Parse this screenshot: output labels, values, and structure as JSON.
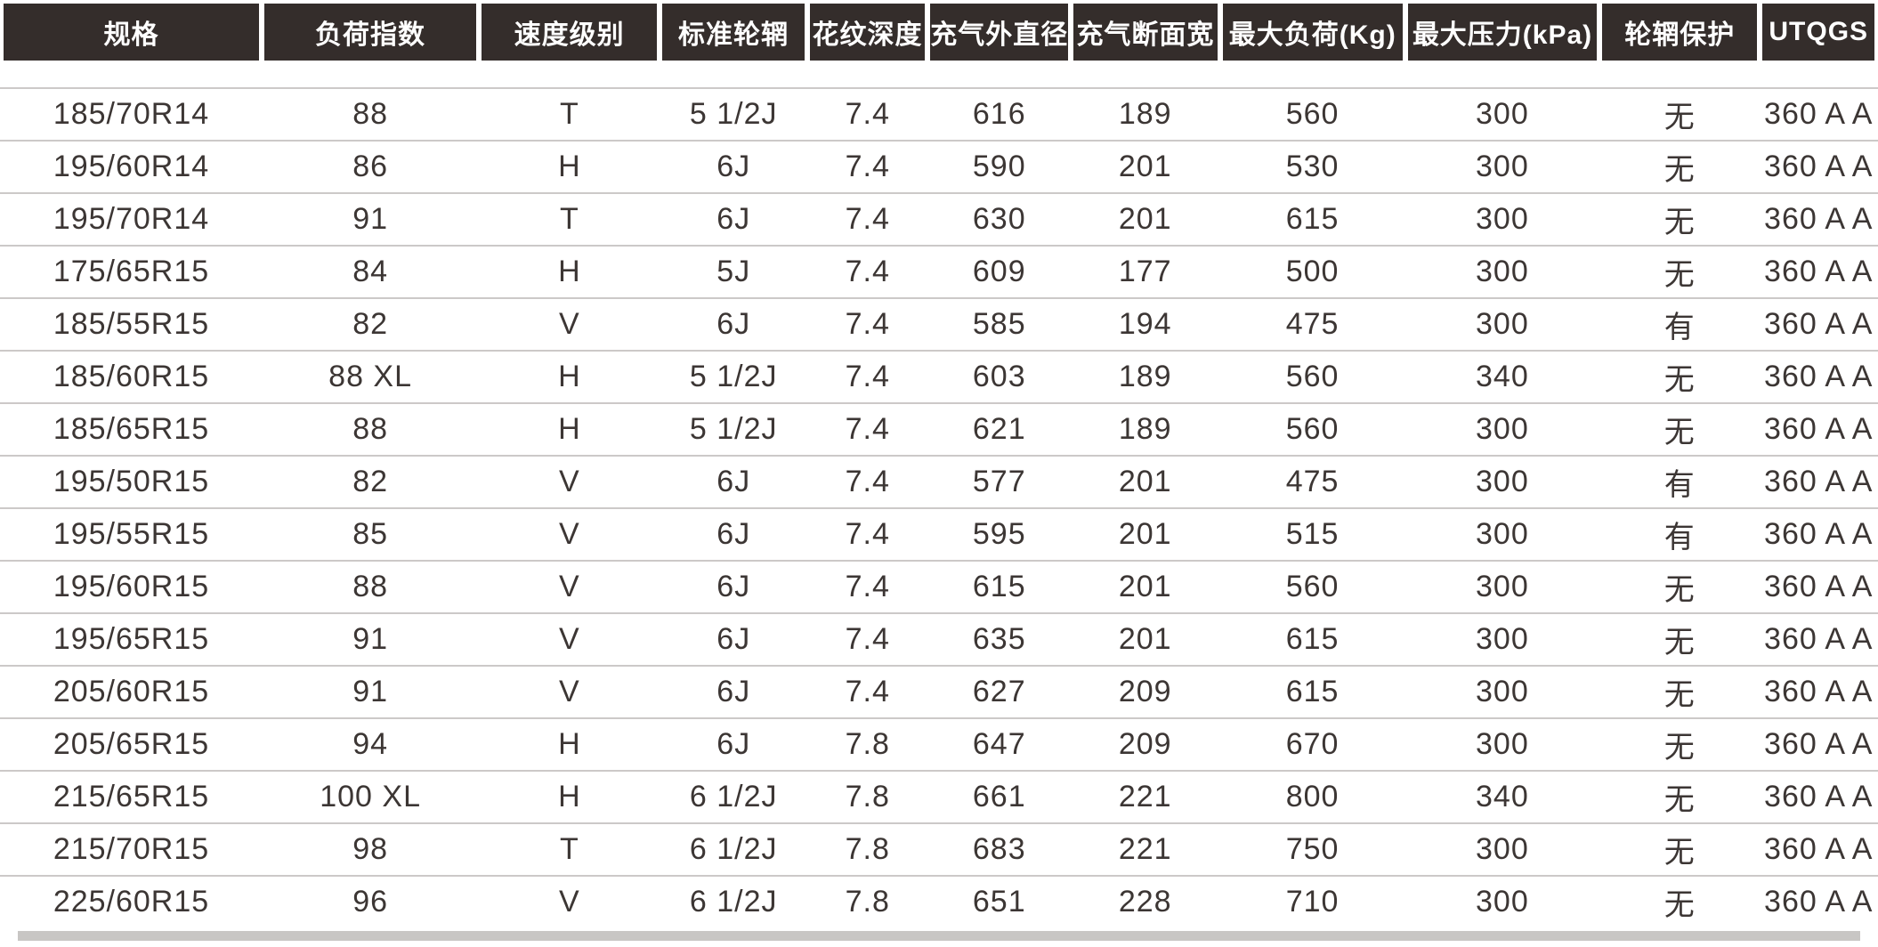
{
  "colors": {
    "header_background": "#342d2b",
    "header_text": "#ffffff",
    "cell_text": "#3c3634",
    "divider_line": "#ccc9c8",
    "bottom_bar": "#c8c6c4",
    "page_background": "#ffffff"
  },
  "table": {
    "columns": [
      "规格",
      "负荷指数",
      "速度级别",
      "标准轮辋",
      "花纹深度",
      "充气外直径",
      "充气断面宽",
      "最大负荷(Kg)",
      "最大压力(kPa)",
      "轮辋保护",
      "UTQGS"
    ],
    "rows": [
      [
        "185/70R14",
        "88",
        "T",
        "5 1/2J",
        "7.4",
        "616",
        "189",
        "560",
        "300",
        "无",
        "360 A A"
      ],
      [
        "195/60R14",
        "86",
        "H",
        "6J",
        "7.4",
        "590",
        "201",
        "530",
        "300",
        "无",
        "360 A A"
      ],
      [
        "195/70R14",
        "91",
        "T",
        "6J",
        "7.4",
        "630",
        "201",
        "615",
        "300",
        "无",
        "360 A A"
      ],
      [
        "175/65R15",
        "84",
        "H",
        "5J",
        "7.4",
        "609",
        "177",
        "500",
        "300",
        "无",
        "360 A A"
      ],
      [
        "185/55R15",
        "82",
        "V",
        "6J",
        "7.4",
        "585",
        "194",
        "475",
        "300",
        "有",
        "360 A A"
      ],
      [
        "185/60R15",
        "88 XL",
        "H",
        "5 1/2J",
        "7.4",
        "603",
        "189",
        "560",
        "340",
        "无",
        "360 A A"
      ],
      [
        "185/65R15",
        "88",
        "H",
        "5 1/2J",
        "7.4",
        "621",
        "189",
        "560",
        "300",
        "无",
        "360 A A"
      ],
      [
        "195/50R15",
        "82",
        "V",
        "6J",
        "7.4",
        "577",
        "201",
        "475",
        "300",
        "有",
        "360 A A"
      ],
      [
        "195/55R15",
        "85",
        "V",
        "6J",
        "7.4",
        "595",
        "201",
        "515",
        "300",
        "有",
        "360 A A"
      ],
      [
        "195/60R15",
        "88",
        "V",
        "6J",
        "7.4",
        "615",
        "201",
        "560",
        "300",
        "无",
        "360 A A"
      ],
      [
        "195/65R15",
        "91",
        "V",
        "6J",
        "7.4",
        "635",
        "201",
        "615",
        "300",
        "无",
        "360 A A"
      ],
      [
        "205/60R15",
        "91",
        "V",
        "6J",
        "7.4",
        "627",
        "209",
        "615",
        "300",
        "无",
        "360 A A"
      ],
      [
        "205/65R15",
        "94",
        "H",
        "6J",
        "7.8",
        "647",
        "209",
        "670",
        "300",
        "无",
        "360 A A"
      ],
      [
        "215/65R15",
        "100 XL",
        "H",
        "6 1/2J",
        "7.8",
        "661",
        "221",
        "800",
        "340",
        "无",
        "360 A A"
      ],
      [
        "215/70R15",
        "98",
        "T",
        "6 1/2J",
        "7.8",
        "683",
        "221",
        "750",
        "300",
        "无",
        "360 A A"
      ],
      [
        "225/60R15",
        "96",
        "V",
        "6 1/2J",
        "7.8",
        "651",
        "228",
        "710",
        "300",
        "无",
        "360 A A"
      ]
    ]
  }
}
